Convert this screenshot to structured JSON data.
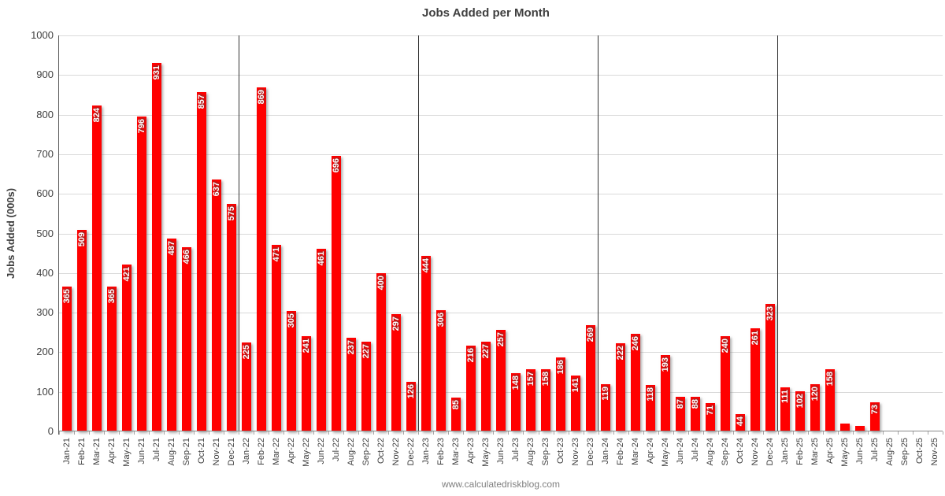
{
  "chart_data": {
    "type": "bar",
    "title": "Jobs Added per Month",
    "ylabel": "Jobs Added (000s)",
    "footer": "www.calculatedriskblog.com",
    "ylim": [
      0,
      1000
    ],
    "ytick_step": 100,
    "grid": true,
    "legend_position": "none",
    "bar_color": "#FF0000",
    "bar_label_color": "#FFFFFF",
    "gridline_color": "#D9D9D9",
    "axis_text_color": "#404040",
    "year_separators_before": [
      "Jan-22",
      "Jan-23",
      "Jan-24",
      "Jan-25"
    ],
    "labels_hidden_for": [
      "May-25",
      "Jun-25"
    ],
    "categories": [
      "Jan-21",
      "Feb-21",
      "Mar-21",
      "Apr-21",
      "May-21",
      "Jun-21",
      "Jul-21",
      "Aug-21",
      "Sep-21",
      "Oct-21",
      "Nov-21",
      "Dec-21",
      "Jan-22",
      "Feb-22",
      "Mar-22",
      "Apr-22",
      "May-22",
      "Jun-22",
      "Jul-22",
      "Aug-22",
      "Sep-22",
      "Oct-22",
      "Nov-22",
      "Dec-22",
      "Jan-23",
      "Feb-23",
      "Mar-23",
      "Apr-23",
      "May-23",
      "Jun-23",
      "Jul-23",
      "Aug-23",
      "Sep-23",
      "Oct-23",
      "Nov-23",
      "Dec-23",
      "Jan-24",
      "Feb-24",
      "Mar-24",
      "Apr-24",
      "May-24",
      "Jun-24",
      "Jul-24",
      "Aug-24",
      "Sep-24",
      "Oct-24",
      "Nov-24",
      "Dec-24",
      "Jan-25",
      "Feb-25",
      "Mar-25",
      "Apr-25",
      "May-25",
      "Jun-25",
      "Jul-25",
      "Aug-25",
      "Sep-25",
      "Oct-25",
      "Nov-25"
    ],
    "values": [
      365,
      509,
      824,
      365,
      421,
      796,
      931,
      487,
      466,
      857,
      637,
      575,
      225,
      869,
      471,
      305,
      241,
      461,
      696,
      237,
      227,
      400,
      297,
      126,
      444,
      306,
      85,
      216,
      227,
      257,
      148,
      157,
      158,
      186,
      141,
      269,
      119,
      222,
      246,
      118,
      193,
      87,
      88,
      71,
      240,
      44,
      261,
      323,
      111,
      102,
      120,
      158,
      19,
      14,
      73,
      null,
      null,
      null,
      null
    ]
  }
}
